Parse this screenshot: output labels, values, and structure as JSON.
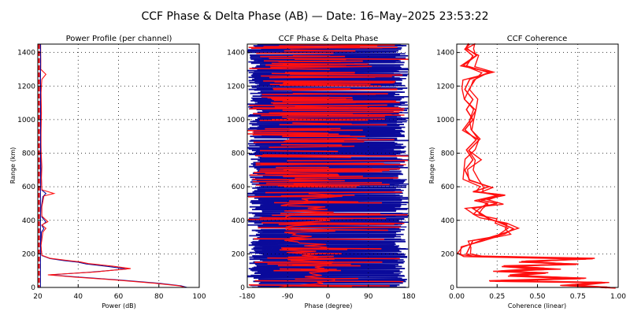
{
  "figure": {
    "title": "CCF Phase & Delta Phase (AB) — Date: 16–May–2025 23:53:22",
    "colors": {
      "ch1": "#0b0b9b",
      "ch2": "#ff1010",
      "text": "#000000"
    }
  },
  "chart_data": [
    {
      "id": "power",
      "type": "line",
      "title": "Power Profile (per channel)",
      "xlabel": "Power (dB)",
      "ylabel": "Range (km)",
      "xlim": [
        20,
        100
      ],
      "ylim": [
        0,
        1450
      ],
      "xticks": [
        20,
        40,
        60,
        80,
        100
      ],
      "yticks": [
        0,
        200,
        400,
        600,
        800,
        1000,
        1200,
        1400
      ],
      "grid": true,
      "series": [
        {
          "color": "#0b0b9b",
          "points": [
            [
              94,
              0
            ],
            [
              91,
              10
            ],
            [
              80,
              25
            ],
            [
              60,
              45
            ],
            [
              40,
              62
            ],
            [
              26,
              75
            ],
            [
              45,
              90
            ],
            [
              64,
              110
            ],
            [
              55,
              125
            ],
            [
              44,
              140
            ],
            [
              40,
              150
            ],
            [
              33,
              160
            ],
            [
              26,
              172
            ],
            [
              22,
              190
            ],
            [
              21.5,
              250
            ],
            [
              21.8,
              330
            ],
            [
              23,
              350
            ],
            [
              22,
              370
            ],
            [
              24,
              390
            ],
            [
              22,
              420
            ],
            [
              21.8,
              480
            ],
            [
              22.5,
              540
            ],
            [
              24,
              560
            ],
            [
              22,
              580
            ],
            [
              21.8,
              640
            ],
            [
              21.5,
              720
            ],
            [
              21.6,
              820
            ],
            [
              21.4,
              920
            ],
            [
              21.6,
              1040
            ],
            [
              21.4,
              1160
            ],
            [
              21.3,
              1260
            ],
            [
              21.4,
              1350
            ],
            [
              21.3,
              1450
            ]
          ]
        },
        {
          "color": "#ff1010",
          "points": [
            [
              93,
              0
            ],
            [
              90,
              10
            ],
            [
              78,
              25
            ],
            [
              58,
              45
            ],
            [
              38,
              62
            ],
            [
              25,
              75
            ],
            [
              48,
              92
            ],
            [
              66,
              112
            ],
            [
              57,
              127
            ],
            [
              45,
              142
            ],
            [
              41,
              152
            ],
            [
              34,
              162
            ],
            [
              26,
              174
            ],
            [
              22,
              192
            ],
            [
              21.6,
              250
            ],
            [
              22.5,
              330
            ],
            [
              24,
              352
            ],
            [
              22,
              372
            ],
            [
              25,
              392
            ],
            [
              22,
              425
            ],
            [
              22,
              480
            ],
            [
              23,
              545
            ],
            [
              28,
              560
            ],
            [
              22,
              582
            ],
            [
              21.8,
              650
            ],
            [
              22,
              720
            ],
            [
              21.6,
              820
            ],
            [
              21.6,
              920
            ],
            [
              21.8,
              1040
            ],
            [
              21.6,
              1160
            ],
            [
              22,
              1240
            ],
            [
              24,
              1270
            ],
            [
              21.5,
              1300
            ],
            [
              21.4,
              1450
            ]
          ]
        }
      ]
    },
    {
      "id": "phase",
      "type": "scatter",
      "title": "CCF Phase & Delta Phase",
      "xlabel": "Phase (degree)",
      "ylabel": "",
      "xlim": [
        -180,
        180
      ],
      "ylim": [
        0,
        1450
      ],
      "xticks": [
        -180,
        -90,
        0,
        90,
        180
      ],
      "yticks": [
        0,
        200,
        400,
        600,
        800,
        1000,
        1200,
        1400
      ],
      "grid": true,
      "series": [
        {
          "color": "#0b0b9b",
          "style": "dense horizontal phase traces"
        },
        {
          "color": "#ff1010",
          "style": "delta phase traces"
        }
      ]
    },
    {
      "id": "coherence",
      "type": "line",
      "title": "CCF Coherence",
      "xlabel": "Coherence (linear)",
      "ylabel": "Range (km)",
      "xlim": [
        0,
        1
      ],
      "ylim": [
        0,
        1450
      ],
      "xticks": [
        0,
        0.25,
        0.5,
        0.75,
        1
      ],
      "xticklabels": [
        "0.00",
        "0.25",
        "0.50",
        "0.75",
        "1.00"
      ],
      "yticks": [
        0,
        200,
        400,
        600,
        800,
        1000,
        1200,
        1400
      ],
      "grid": true,
      "series": [
        {
          "color": "#ff1010",
          "points": [
            [
              0.95,
              0
            ],
            [
              0.7,
              15
            ],
            [
              0.9,
              30
            ],
            [
              0.2,
              40
            ],
            [
              0.75,
              55
            ],
            [
              0.35,
              70
            ],
            [
              0.55,
              85
            ],
            [
              0.25,
              95
            ],
            [
              0.6,
              110
            ],
            [
              0.3,
              125
            ],
            [
              0.7,
              140
            ],
            [
              0.4,
              155
            ],
            [
              0.8,
              170
            ],
            [
              0.1,
              185
            ],
            [
              0.06,
              200
            ],
            [
              0.08,
              240
            ],
            [
              0.1,
              280
            ],
            [
              0.22,
              300
            ],
            [
              0.3,
              320
            ],
            [
              0.35,
              350
            ],
            [
              0.28,
              380
            ],
            [
              0.2,
              410
            ],
            [
              0.15,
              440
            ],
            [
              0.1,
              470
            ],
            [
              0.25,
              500
            ],
            [
              0.15,
              520
            ],
            [
              0.3,
              550
            ],
            [
              0.1,
              570
            ],
            [
              0.2,
              600
            ],
            [
              0.08,
              640
            ],
            [
              0.05,
              700
            ],
            [
              0.1,
              760
            ],
            [
              0.06,
              820
            ],
            [
              0.12,
              880
            ],
            [
              0.05,
              940
            ],
            [
              0.1,
              1000
            ],
            [
              0.06,
              1060
            ],
            [
              0.1,
              1120
            ],
            [
              0.05,
              1180
            ],
            [
              0.08,
              1240
            ],
            [
              0.2,
              1280
            ],
            [
              0.06,
              1320
            ],
            [
              0.1,
              1380
            ],
            [
              0.05,
              1420
            ],
            [
              0.08,
              1450
            ]
          ]
        }
      ]
    }
  ]
}
